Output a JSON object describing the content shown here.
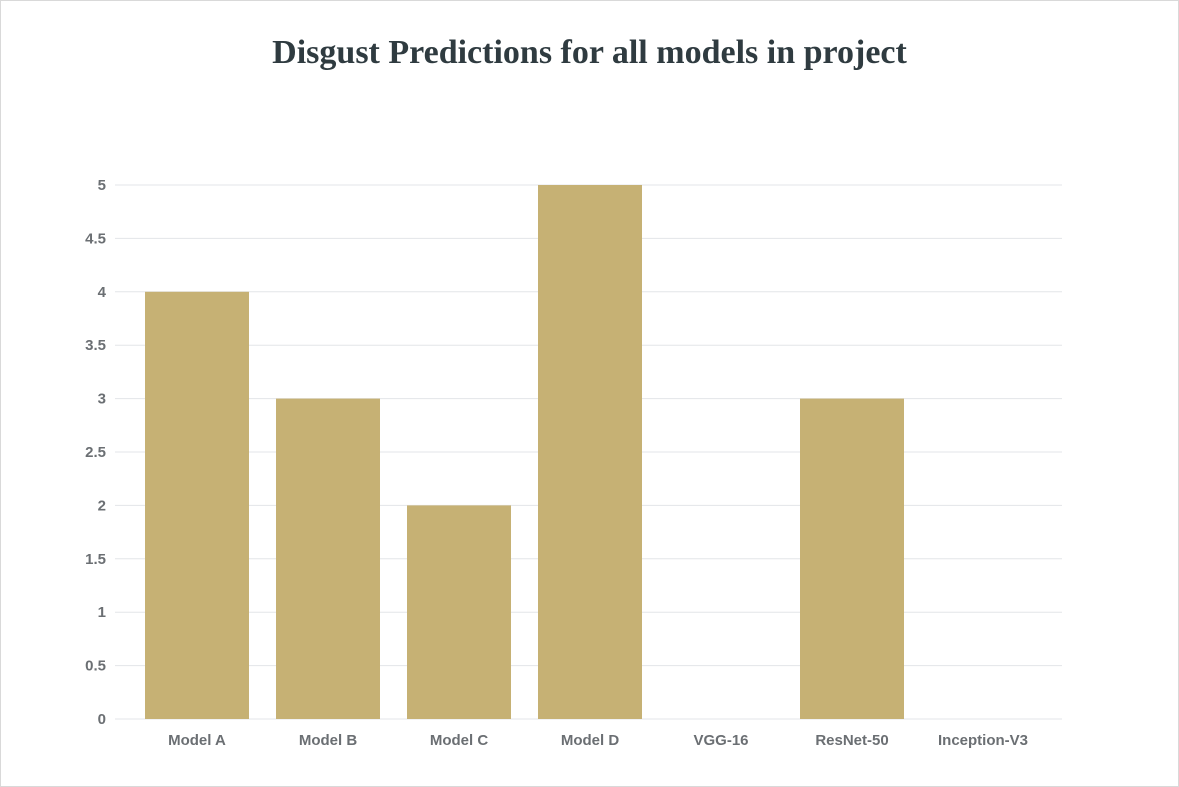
{
  "chart_data": {
    "type": "bar",
    "title": "Disgust Predictions for all models in project",
    "categories": [
      "Model A",
      "Model B",
      "Model C",
      "Model D",
      "VGG-16",
      "ResNet-50",
      "Inception-V3"
    ],
    "values": [
      4,
      3,
      2,
      5,
      0,
      3,
      0
    ],
    "ylim": [
      0,
      5
    ],
    "yticks": [
      0,
      0.5,
      1,
      1.5,
      2,
      2.5,
      3,
      3.5,
      4,
      4.5,
      5
    ],
    "xlabel": "",
    "ylabel": "",
    "grid": true,
    "bar_color": "#c6b174",
    "grid_color": "#e3e5e8",
    "tick_color": "#6b6f73"
  }
}
